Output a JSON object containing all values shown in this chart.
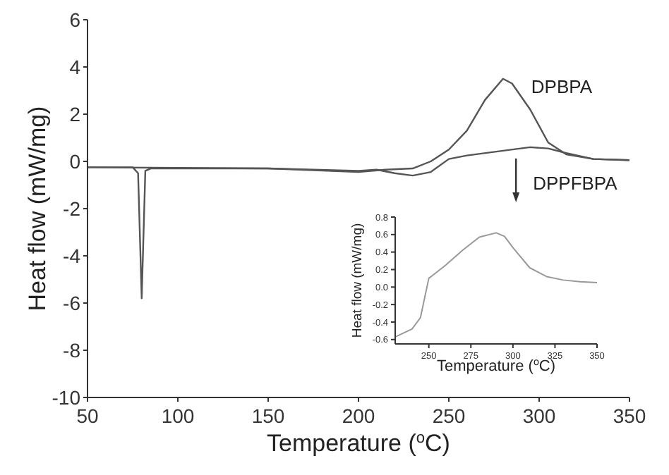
{
  "chart_data": [
    {
      "type": "line",
      "xlabel": "Temperature ($^{o}$C)",
      "ylabel": "Heat flow (mW/mg)",
      "xlim": [
        50,
        350
      ],
      "xticks": [
        50,
        100,
        150,
        200,
        250,
        300,
        350
      ],
      "ylim": [
        -10,
        6
      ],
      "yticks": [
        -10,
        -8,
        -6,
        -4,
        -2,
        0,
        2,
        4,
        6
      ],
      "grid": false,
      "legend": false,
      "line_style": "solid",
      "series": [
        {
          "name": "DPBPA",
          "color": "#555555",
          "x": [
            50,
            75,
            78,
            80,
            82,
            85,
            150,
            200,
            215,
            230,
            240,
            250,
            260,
            270,
            280,
            285,
            295,
            305,
            315,
            330,
            350
          ],
          "values": [
            -0.25,
            -0.25,
            -0.5,
            -5.8,
            -0.4,
            -0.3,
            -0.3,
            -0.45,
            -0.35,
            -0.3,
            0,
            0.5,
            1.3,
            2.6,
            3.5,
            3.3,
            2.2,
            0.8,
            0.3,
            0.1,
            0.05
          ]
        },
        {
          "name": "DPPFBPA",
          "color": "#555555",
          "x": [
            50,
            150,
            200,
            210,
            220,
            230,
            240,
            250,
            260,
            280,
            295,
            305,
            315,
            330,
            350
          ],
          "values": [
            -0.25,
            -0.3,
            -0.4,
            -0.35,
            -0.5,
            -0.6,
            -0.45,
            0.1,
            0.25,
            0.45,
            0.6,
            0.55,
            0.35,
            0.1,
            0.05
          ]
        }
      ]
    },
    {
      "type": "line",
      "xlabel": "Temperature ($^{o}$C)",
      "ylabel": "Heat flow (mW/mg)",
      "xlim": [
        230,
        350
      ],
      "xticks": [
        250,
        275,
        300,
        325,
        350
      ],
      "ylim": [
        -0.65,
        0.8
      ],
      "yticks": [
        -0.6,
        -0.4,
        -0.2,
        {
          "value": 0,
          "label": "0.0"
        },
        0.2,
        0.4,
        0.6,
        0.8
      ],
      "grid": false,
      "legend": false,
      "line_style": "solid",
      "series": [
        {
          "color": "#999999",
          "x": [
            230,
            240,
            245,
            250,
            252,
            260,
            270,
            280,
            290,
            295,
            300,
            310,
            320,
            330,
            340,
            350
          ],
          "values": [
            -0.57,
            -0.48,
            -0.35,
            0.1,
            0.13,
            0.25,
            0.42,
            0.57,
            0.62,
            0.58,
            0.45,
            0.22,
            0.12,
            0.08,
            0.06,
            0.05
          ]
        }
      ]
    }
  ]
}
